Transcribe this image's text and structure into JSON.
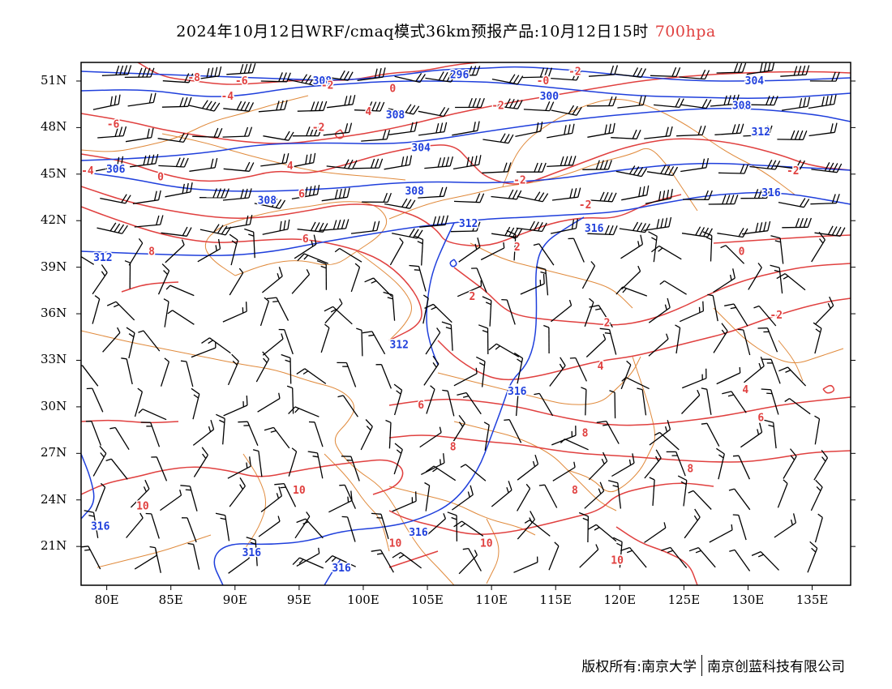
{
  "title": {
    "main": "2024年10月12日WRF/cmaq模式36km预报产品:10月12日15时",
    "level": "700hpa",
    "level_color": "#e0403f"
  },
  "axes": {
    "lat_labels": [
      "51N",
      "48N",
      "45N",
      "42N",
      "39N",
      "36N",
      "33N",
      "30N",
      "27N",
      "24N",
      "21N"
    ],
    "lat_values": [
      51,
      48,
      45,
      42,
      39,
      36,
      33,
      30,
      27,
      24,
      21
    ],
    "lon_labels": [
      "80E",
      "85E",
      "90E",
      "95E",
      "100E",
      "105E",
      "110E",
      "115E",
      "120E",
      "125E",
      "130E",
      "135E"
    ],
    "lon_values": [
      80,
      85,
      90,
      95,
      100,
      105,
      110,
      115,
      120,
      125,
      130,
      135
    ],
    "lon_range": [
      78,
      138
    ],
    "lat_range": [
      18.5,
      52.2
    ]
  },
  "map": {
    "geopotential_color": "#1f3fdc",
    "temperature_color": "#e0403f",
    "border_color": "#e08a3c",
    "barb_color": "#000000",
    "geopotential_labels": [
      {
        "text": "296",
        "lon": 107.5,
        "lat": 51.4
      },
      {
        "text": "300",
        "lon": 114.5,
        "lat": 50.0
      },
      {
        "text": "304",
        "lon": 130.5,
        "lat": 51.0
      },
      {
        "text": "308",
        "lon": 96.8,
        "lat": 51.0
      },
      {
        "text": "308",
        "lon": 129.5,
        "lat": 49.4
      },
      {
        "text": "304",
        "lon": 104.5,
        "lat": 46.7
      },
      {
        "text": "306",
        "lon": 80.7,
        "lat": 45.3
      },
      {
        "text": "308",
        "lon": 102.5,
        "lat": 48.8
      },
      {
        "text": "312",
        "lon": 131.0,
        "lat": 47.7
      },
      {
        "text": "308",
        "lon": 104.0,
        "lat": 43.9
      },
      {
        "text": "308",
        "lon": 92.5,
        "lat": 43.3
      },
      {
        "text": "316",
        "lon": 131.8,
        "lat": 43.8
      },
      {
        "text": "312",
        "lon": 108.2,
        "lat": 41.8
      },
      {
        "text": "316",
        "lon": 118.0,
        "lat": 41.5
      },
      {
        "text": "312",
        "lon": 79.7,
        "lat": 39.6
      },
      {
        "text": "312",
        "lon": 102.8,
        "lat": 34.0
      },
      {
        "text": "316",
        "lon": 112.0,
        "lat": 31.0
      },
      {
        "text": "316",
        "lon": 104.3,
        "lat": 21.9
      },
      {
        "text": "316",
        "lon": 79.5,
        "lat": 22.3
      },
      {
        "text": "316",
        "lon": 91.3,
        "lat": 20.6
      },
      {
        "text": "316",
        "lon": 98.3,
        "lat": 19.6
      }
    ],
    "temperature_labels": [
      {
        "text": "-8",
        "lon": 86.8,
        "lat": 51.2
      },
      {
        "text": "-6",
        "lon": 90.5,
        "lat": 51.0
      },
      {
        "text": "-2",
        "lon": 97.2,
        "lat": 50.7
      },
      {
        "text": "0",
        "lon": 102.3,
        "lat": 50.5
      },
      {
        "text": "-2",
        "lon": 116.5,
        "lat": 51.6
      },
      {
        "text": "-0",
        "lon": 114.0,
        "lat": 51.0
      },
      {
        "text": "-2",
        "lon": 110.5,
        "lat": 49.4
      },
      {
        "text": "-4",
        "lon": 89.4,
        "lat": 50.0
      },
      {
        "text": "-6",
        "lon": 80.5,
        "lat": 48.2
      },
      {
        "text": "4",
        "lon": 100.4,
        "lat": 49.0
      },
      {
        "text": "-2",
        "lon": 96.5,
        "lat": 48.0
      },
      {
        "text": "-2",
        "lon": 133.5,
        "lat": 45.2
      },
      {
        "text": "4",
        "lon": 94.3,
        "lat": 45.5
      },
      {
        "text": "-4",
        "lon": 78.5,
        "lat": 45.2
      },
      {
        "text": "0",
        "lon": 84.2,
        "lat": 44.8
      },
      {
        "text": "-2",
        "lon": 112.2,
        "lat": 44.6
      },
      {
        "text": "6",
        "lon": 95.2,
        "lat": 43.7
      },
      {
        "text": "-2",
        "lon": 117.3,
        "lat": 43.0
      },
      {
        "text": "6",
        "lon": 95.5,
        "lat": 40.8
      },
      {
        "text": "8",
        "lon": 83.5,
        "lat": 40.0
      },
      {
        "text": "2",
        "lon": 112.0,
        "lat": 40.3
      },
      {
        "text": "0",
        "lon": 129.5,
        "lat": 40.0
      },
      {
        "text": "2",
        "lon": 108.5,
        "lat": 37.1
      },
      {
        "text": "2",
        "lon": 119.0,
        "lat": 35.4
      },
      {
        "text": "-2",
        "lon": 132.2,
        "lat": 35.9
      },
      {
        "text": "4",
        "lon": 118.5,
        "lat": 32.6
      },
      {
        "text": "4",
        "lon": 129.8,
        "lat": 31.1
      },
      {
        "text": "6",
        "lon": 104.5,
        "lat": 30.1
      },
      {
        "text": "6",
        "lon": 131.0,
        "lat": 29.3
      },
      {
        "text": "8",
        "lon": 117.3,
        "lat": 28.3
      },
      {
        "text": "8",
        "lon": 107.0,
        "lat": 27.4
      },
      {
        "text": "8",
        "lon": 125.5,
        "lat": 26.0
      },
      {
        "text": "10",
        "lon": 95.0,
        "lat": 24.6
      },
      {
        "text": "10",
        "lon": 82.8,
        "lat": 23.6
      },
      {
        "text": "8",
        "lon": 116.5,
        "lat": 24.6
      },
      {
        "text": "10",
        "lon": 109.6,
        "lat": 21.2
      },
      {
        "text": "10",
        "lon": 102.5,
        "lat": 21.2
      },
      {
        "text": "10",
        "lon": 119.8,
        "lat": 20.1
      }
    ]
  },
  "footer": {
    "copyright": "版权所有:南京大学",
    "company": "南京创蓝科技有限公司"
  }
}
